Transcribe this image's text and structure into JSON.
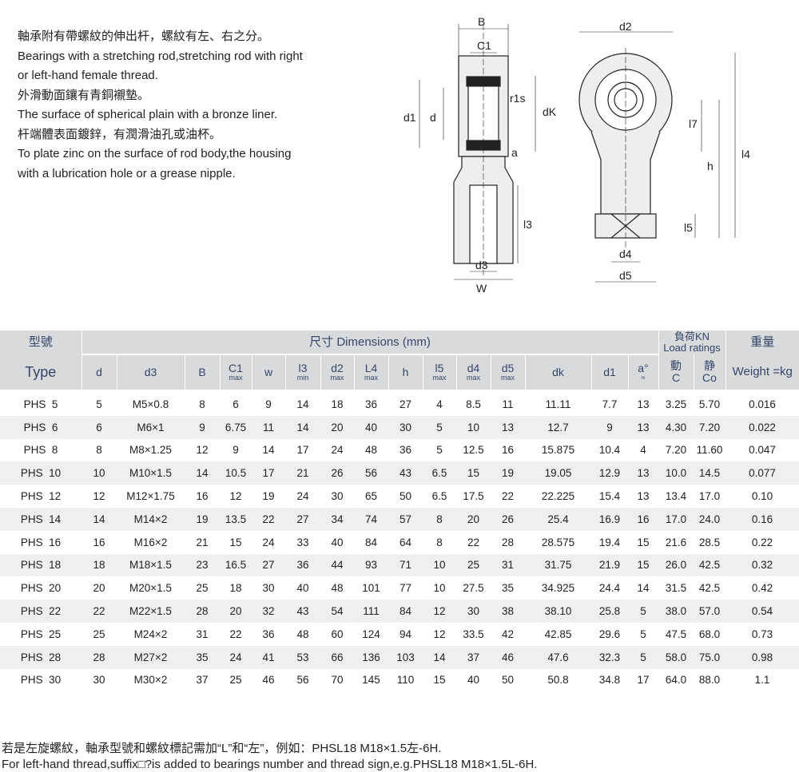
{
  "intro": [
    "軸承附有帶螺紋的伸出杆，螺紋有左、右之分。",
    "Bearings with a stretching rod,stretching rod with right",
    "or left-hand female thread.",
    "外滑動面鑲有青銅襯墊。",
    "The surface of spherical plain with a bronze liner.",
    "杆端體表面鍍鋅，有潤滑油孔或油杯。",
    "To plate zinc on the surface of rod body,the housing",
    "with a lubrication hole or a grease nipple."
  ],
  "diagram": {
    "B": "B",
    "C1": "C1",
    "r1s": "r1s",
    "d1": "d1",
    "d": "d",
    "dK": "dK",
    "a": "a",
    "l3": "l3",
    "d3": "d3",
    "W": "W",
    "d2": "d2",
    "l7": "l7",
    "l4": "l4",
    "h": "h",
    "l5": "l5",
    "d4": "d4",
    "d5": "d5"
  },
  "table": {
    "type_cn": "型號",
    "type_en": "Type",
    "dims_title": "尺寸 Dimensions (mm)",
    "load_cn": "負荷KN",
    "load_en": "Load ratings",
    "weight_cn": "重量",
    "weight_en": "Weight =kg",
    "columns": [
      {
        "m": "d"
      },
      {
        "m": "d3"
      },
      {
        "m": "B"
      },
      {
        "m": "C1",
        "s": "max"
      },
      {
        "m": "w"
      },
      {
        "m": "l3",
        "s": "min"
      },
      {
        "m": "d2",
        "s": "max"
      },
      {
        "m": "L4",
        "s": "max"
      },
      {
        "m": "h"
      },
      {
        "m": "l5",
        "s": "max"
      },
      {
        "m": "d4",
        "s": "max"
      },
      {
        "m": "d5",
        "s": "max"
      },
      {
        "m": "dk"
      },
      {
        "m": "d1"
      },
      {
        "m": "a°",
        "s": "≈"
      },
      {
        "m": "動",
        "s": "C"
      },
      {
        "m": "静",
        "s": "Co"
      }
    ],
    "rows": [
      [
        "PHS  5",
        "5",
        "M5×0.8",
        "8",
        "6",
        "9",
        "14",
        "18",
        "36",
        "27",
        "4",
        "8.5",
        "11",
        "11.11",
        "7.7",
        "13",
        "3.25",
        "5.70",
        "0.016"
      ],
      [
        "PHS  6",
        "6",
        "M6×1",
        "9",
        "6.75",
        "11",
        "14",
        "20",
        "40",
        "30",
        "5",
        "10",
        "13",
        "12.7",
        "9",
        "13",
        "4.30",
        "7.20",
        "0.022"
      ],
      [
        "PHS  8",
        "8",
        "M8×1.25",
        "12",
        "9",
        "14",
        "17",
        "24",
        "48",
        "36",
        "5",
        "12.5",
        "16",
        "15.875",
        "10.4",
        "4",
        "7.20",
        "11.60",
        "0.047"
      ],
      [
        "PHS  10",
        "10",
        "M10×1.5",
        "14",
        "10.5",
        "17",
        "21",
        "26",
        "56",
        "43",
        "6.5",
        "15",
        "19",
        "19.05",
        "12.9",
        "13",
        "10.0",
        "14.5",
        "0.077"
      ],
      [
        "PHS  12",
        "12",
        "M12×1.75",
        "16",
        "12",
        "19",
        "24",
        "30",
        "65",
        "50",
        "6.5",
        "17.5",
        "22",
        "22.225",
        "15.4",
        "13",
        "13.4",
        "17.0",
        "0.10"
      ],
      [
        "PHS  14",
        "14",
        "M14×2",
        "19",
        "13.5",
        "22",
        "27",
        "34",
        "74",
        "57",
        "8",
        "20",
        "26",
        "25.4",
        "16.9",
        "16",
        "17.0",
        "24.0",
        "0.16"
      ],
      [
        "PHS  16",
        "16",
        "M16×2",
        "21",
        "15",
        "24",
        "33",
        "40",
        "84",
        "64",
        "8",
        "22",
        "28",
        "28.575",
        "19.4",
        "15",
        "21.6",
        "28.5",
        "0.22"
      ],
      [
        "PHS  18",
        "18",
        "M18×1.5",
        "23",
        "16.5",
        "27",
        "36",
        "44",
        "93",
        "71",
        "10",
        "25",
        "31",
        "31.75",
        "21.9",
        "15",
        "26.0",
        "42.5",
        "0.32"
      ],
      [
        "PHS  20",
        "20",
        "M20×1.5",
        "25",
        "18",
        "30",
        "40",
        "48",
        "101",
        "77",
        "10",
        "27.5",
        "35",
        "34.925",
        "24.4",
        "14",
        "31.5",
        "42.5",
        "0.42"
      ],
      [
        "PHS  22",
        "22",
        "M22×1.5",
        "28",
        "20",
        "32",
        "43",
        "54",
        "111",
        "84",
        "12",
        "30",
        "38",
        "38.10",
        "25.8",
        "5",
        "38.0",
        "57.0",
        "0.54"
      ],
      [
        "PHS  25",
        "25",
        "M24×2",
        "31",
        "22",
        "36",
        "48",
        "60",
        "124",
        "94",
        "12",
        "33.5",
        "42",
        "42.85",
        "29.6",
        "5",
        "47.5",
        "68.0",
        "0.73"
      ],
      [
        "PHS  28",
        "28",
        "M27×2",
        "35",
        "24",
        "41",
        "53",
        "66",
        "136",
        "103",
        "14",
        "37",
        "46",
        "47.6",
        "32.3",
        "5",
        "58.0",
        "75.0",
        "0.98"
      ],
      [
        "PHS  30",
        "30",
        "M30×2",
        "37",
        "25",
        "46",
        "56",
        "70",
        "145",
        "110",
        "15",
        "40",
        "50",
        "50.8",
        "34.8",
        "17",
        "64.0",
        "88.0",
        "1.1"
      ]
    ]
  },
  "footer": [
    "若是左旋螺紋，軸承型號和螺紋標記需加“L”和“左”，例如：PHSL18   M18×1.5左-6H.",
    "For left-hand thread,suffix□?is added to bearings number and thread sign,e.g.PHSL18   M18×1.5L-6H."
  ]
}
